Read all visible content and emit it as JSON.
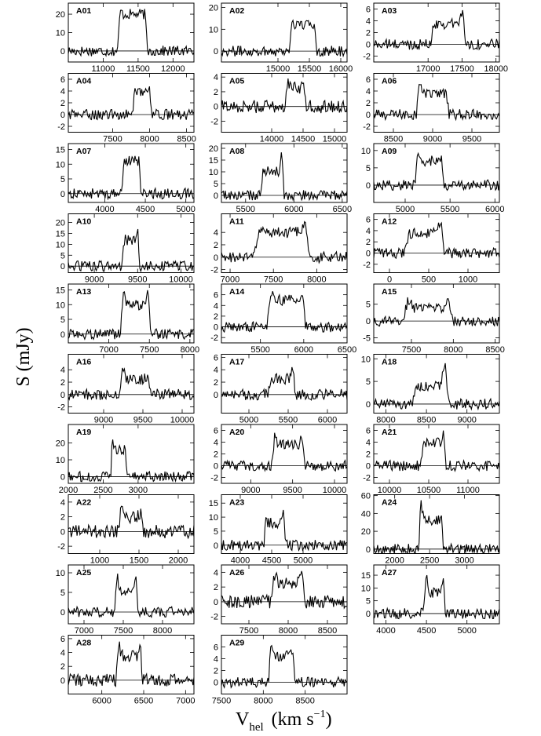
{
  "figure": {
    "ylabel": "S (mJy)",
    "xlabel_main": "V",
    "xlabel_sub": "hel",
    "xlabel_units": "(km s",
    "xlabel_exp": "−1",
    "xlabel_close": ")"
  },
  "chart_data": [
    {
      "id": "A01",
      "type": "line",
      "xlim": [
        10500,
        12300
      ],
      "ylim": [
        -6,
        26
      ],
      "xticks": [
        11000,
        11500,
        12000
      ],
      "yticks": [
        0,
        10,
        20
      ],
      "center": 11420,
      "width": 430,
      "peak": 20,
      "horns": [
        25,
        22
      ]
    },
    {
      "id": "A02",
      "type": "line",
      "xlim": [
        14100,
        16100
      ],
      "ylim": [
        -5,
        22
      ],
      "xticks": [
        15000,
        15500,
        16000
      ],
      "yticks": [
        0,
        10,
        20
      ],
      "center": 15400,
      "width": 440,
      "peak": 12,
      "horns": [
        16,
        13
      ]
    },
    {
      "id": "A03",
      "type": "line",
      "xlim": [
        16200,
        18050
      ],
      "ylim": [
        -3,
        7
      ],
      "xticks": [
        17000,
        17500,
        18000
      ],
      "yticks": [
        -2,
        0,
        2,
        4,
        6
      ],
      "center": 17300,
      "width": 520,
      "peak": 3.5,
      "horns": [
        2.5,
        6
      ]
    },
    {
      "id": "A04",
      "type": "line",
      "xlim": [
        6900,
        8600
      ],
      "ylim": [
        -3,
        7
      ],
      "xticks": [
        7500,
        8000,
        8500
      ],
      "yticks": [
        -2,
        0,
        2,
        4,
        6
      ],
      "center": 7900,
      "width": 250,
      "peak": 4,
      "horns": [
        2.5,
        6
      ]
    },
    {
      "id": "A05",
      "type": "line",
      "xlim": [
        13200,
        15200
      ],
      "ylim": [
        -3.5,
        4.5
      ],
      "xticks": [
        14000,
        14500,
        15000
      ],
      "yticks": [
        -2,
        0,
        2,
        4
      ],
      "center": 14380,
      "width": 330,
      "peak": 2.5,
      "horns": [
        3.8,
        3.5
      ]
    },
    {
      "id": "A06",
      "type": "line",
      "xlim": [
        8250,
        9850
      ],
      "ylim": [
        -3,
        7
      ],
      "xticks": [
        8500,
        9000,
        9500
      ],
      "yticks": [
        -2,
        0,
        2,
        4,
        6
      ],
      "center": 9000,
      "width": 420,
      "peak": 3.5,
      "horns": [
        6,
        4
      ]
    },
    {
      "id": "A07",
      "type": "line",
      "xlim": [
        3550,
        5100
      ],
      "ylim": [
        -3,
        17
      ],
      "xticks": [
        4000,
        4500,
        5000
      ],
      "yticks": [
        0,
        5,
        10,
        15
      ],
      "center": 4330,
      "width": 230,
      "peak": 11,
      "horns": [
        15,
        13
      ]
    },
    {
      "id": "A08",
      "type": "line",
      "xlim": [
        5250,
        6550
      ],
      "ylim": [
        -3,
        22
      ],
      "xticks": [
        5500,
        6000,
        6500
      ],
      "yticks": [
        0,
        5,
        10,
        15,
        20
      ],
      "center": 5780,
      "width": 240,
      "peak": 10,
      "horns": [
        13,
        19
      ]
    },
    {
      "id": "A09",
      "type": "line",
      "xlim": [
        4650,
        6050
      ],
      "ylim": [
        -5,
        12
      ],
      "xticks": [
        5000,
        5500,
        6000
      ],
      "yticks": [
        0,
        5,
        10
      ],
      "center": 5270,
      "width": 330,
      "peak": 7,
      "horns": [
        9,
        9
      ]
    },
    {
      "id": "A10",
      "type": "line",
      "xlim": [
        8700,
        10150
      ],
      "ylim": [
        -3,
        24
      ],
      "xticks": [
        9000,
        9500,
        10000
      ],
      "yticks": [
        0,
        5,
        10,
        15,
        20
      ],
      "center": 9420,
      "width": 200,
      "peak": 12,
      "horns": [
        10,
        20
      ]
    },
    {
      "id": "A11",
      "type": "line",
      "xlim": [
        6900,
        8350
      ],
      "ylim": [
        -2.5,
        7
      ],
      "xticks": [
        7000,
        7500,
        8000
      ],
      "yticks": [
        -2,
        0,
        2,
        4
      ],
      "center": 7600,
      "width": 650,
      "peak": 4,
      "horns": [
        3.5,
        5.5
      ]
    },
    {
      "id": "A12",
      "type": "line",
      "xlim": [
        -200,
        1400
      ],
      "ylim": [
        -3.5,
        7
      ],
      "xticks": [
        0,
        500,
        1000
      ],
      "yticks": [
        -2,
        0,
        2,
        4,
        6
      ],
      "center": 450,
      "width": 500,
      "peak": 3.5,
      "horns": [
        3,
        6
      ]
    },
    {
      "id": "A13",
      "type": "line",
      "xlim": [
        6500,
        8050
      ],
      "ylim": [
        -3,
        17
      ],
      "xticks": [
        7000,
        7500,
        8000
      ],
      "yticks": [
        0,
        5,
        10,
        15
      ],
      "center": 7330,
      "width": 380,
      "peak": 10,
      "horns": [
        15,
        15
      ]
    },
    {
      "id": "A14",
      "type": "line",
      "xlim": [
        5050,
        6500
      ],
      "ylim": [
        -3,
        8
      ],
      "xticks": [
        5500,
        6000,
        6500
      ],
      "yticks": [
        -2,
        0,
        2,
        4,
        6
      ],
      "center": 5800,
      "width": 450,
      "peak": 5,
      "horns": [
        7,
        7
      ]
    },
    {
      "id": "A15",
      "type": "line",
      "xlim": [
        7050,
        8550
      ],
      "ylim": [
        -6.5,
        11
      ],
      "xticks": [
        7500,
        8000,
        8500
      ],
      "yticks": [
        -5,
        0,
        5
      ],
      "center": 7700,
      "width": 600,
      "peak": 4,
      "horns": [
        7,
        7
      ]
    },
    {
      "id": "A16",
      "type": "line",
      "xlim": [
        8550,
        10150
      ],
      "ylim": [
        -3,
        6.5
      ],
      "xticks": [
        9000,
        9500,
        10000
      ],
      "yticks": [
        -2,
        0,
        2,
        4
      ],
      "center": 9400,
      "width": 400,
      "peak": 2.5,
      "horns": [
        4.5,
        3
      ]
    },
    {
      "id": "A17",
      "type": "line",
      "xlim": [
        4650,
        6250
      ],
      "ylim": [
        -3,
        6.5
      ],
      "xticks": [
        5000,
        5500,
        6000
      ],
      "yticks": [
        0,
        2,
        4,
        6
      ],
      "center": 5420,
      "width": 350,
      "peak": 2.5,
      "horns": [
        2.8,
        4.5
      ]
    },
    {
      "id": "A18",
      "type": "line",
      "xlim": [
        7850,
        9400
      ],
      "ylim": [
        -2,
        11
      ],
      "xticks": [
        8000,
        8500,
        9000
      ],
      "yticks": [
        0,
        5,
        10
      ],
      "center": 8550,
      "width": 450,
      "peak": 4,
      "horns": [
        3,
        9
      ]
    },
    {
      "id": "A19",
      "type": "line",
      "xlim": [
        2000,
        3800
      ],
      "ylim": [
        -4,
        31
      ],
      "xticks": [
        2000,
        2500,
        3000
      ],
      "yticks": [
        0,
        10,
        20
      ],
      "center": 2720,
      "width": 230,
      "peak": 16,
      "horns": [
        26,
        20
      ]
    },
    {
      "id": "A20",
      "type": "line",
      "xlim": [
        8650,
        10150
      ],
      "ylim": [
        -3,
        7
      ],
      "xticks": [
        9000,
        9500,
        10000
      ],
      "yticks": [
        -2,
        0,
        2,
        4,
        6
      ],
      "center": 9450,
      "width": 400,
      "peak": 3.5,
      "horns": [
        5.5,
        5
      ]
    },
    {
      "id": "A21",
      "type": "line",
      "xlim": [
        9800,
        11400
      ],
      "ylim": [
        -3,
        7
      ],
      "xticks": [
        10000,
        10500,
        11000
      ],
      "yticks": [
        -2,
        0,
        2,
        4,
        6
      ],
      "center": 10560,
      "width": 320,
      "peak": 4,
      "horns": [
        5,
        6
      ]
    },
    {
      "id": "A22",
      "type": "line",
      "xlim": [
        600,
        2200
      ],
      "ylim": [
        -3,
        5
      ],
      "xticks": [
        1000,
        1500,
        2000
      ],
      "yticks": [
        -2,
        0,
        2,
        4
      ],
      "center": 1400,
      "width": 320,
      "peak": 2,
      "horns": [
        3.5,
        2.5
      ]
    },
    {
      "id": "A23",
      "type": "line",
      "xlim": [
        3700,
        5700
      ],
      "ylim": [
        -3,
        18
      ],
      "xticks": [
        4000,
        4500,
        5000
      ],
      "yticks": [
        0,
        5,
        10,
        15
      ],
      "center": 4550,
      "width": 350,
      "peak": 8,
      "horns": [
        11,
        14
      ]
    },
    {
      "id": "A24",
      "type": "line",
      "xlim": [
        1700,
        3500
      ],
      "ylim": [
        -5,
        61
      ],
      "xticks": [
        2000,
        2500,
        3000
      ],
      "yticks": [
        0,
        20,
        40,
        60
      ],
      "center": 2520,
      "width": 360,
      "peak": 33,
      "horns": [
        56,
        43
      ]
    },
    {
      "id": "A25",
      "type": "line",
      "xlim": [
        6800,
        8400
      ],
      "ylim": [
        -3,
        12
      ],
      "xticks": [
        7000,
        7500,
        8000
      ],
      "yticks": [
        0,
        5,
        10
      ],
      "center": 7540,
      "width": 300,
      "peak": 5,
      "horns": [
        10,
        10
      ]
    },
    {
      "id": "A26",
      "type": "line",
      "xlim": [
        7150,
        8750
      ],
      "ylim": [
        -3,
        5
      ],
      "xticks": [
        7500,
        8000,
        8500
      ],
      "yticks": [
        -2,
        0,
        2,
        4
      ],
      "center": 8000,
      "width": 440,
      "peak": 2.5,
      "horns": [
        4,
        4
      ]
    },
    {
      "id": "A27",
      "type": "line",
      "xlim": [
        3850,
        5400
      ],
      "ylim": [
        -4,
        19
      ],
      "xticks": [
        4000,
        4500,
        5000
      ],
      "yticks": [
        0,
        5,
        10,
        15
      ],
      "center": 4600,
      "width": 270,
      "peak": 8,
      "horns": [
        16,
        15
      ]
    },
    {
      "id": "A28",
      "type": "line",
      "xlim": [
        5600,
        7100
      ],
      "ylim": [
        -2,
        6.5
      ],
      "xticks": [
        6000,
        6500,
        7000
      ],
      "yticks": [
        0,
        2,
        4,
        6
      ],
      "center": 6330,
      "width": 320,
      "peak": 3.5,
      "horns": [
        5.5,
        5
      ]
    },
    {
      "id": "A29",
      "type": "line",
      "xlim": [
        7500,
        9000
      ],
      "ylim": [
        -2,
        8
      ],
      "xticks": [
        7500,
        8000,
        8500
      ],
      "yticks": [
        0,
        2,
        4,
        6
      ],
      "center": 8220,
      "width": 320,
      "peak": 4.5,
      "horns": [
        6.5,
        6
      ]
    }
  ]
}
